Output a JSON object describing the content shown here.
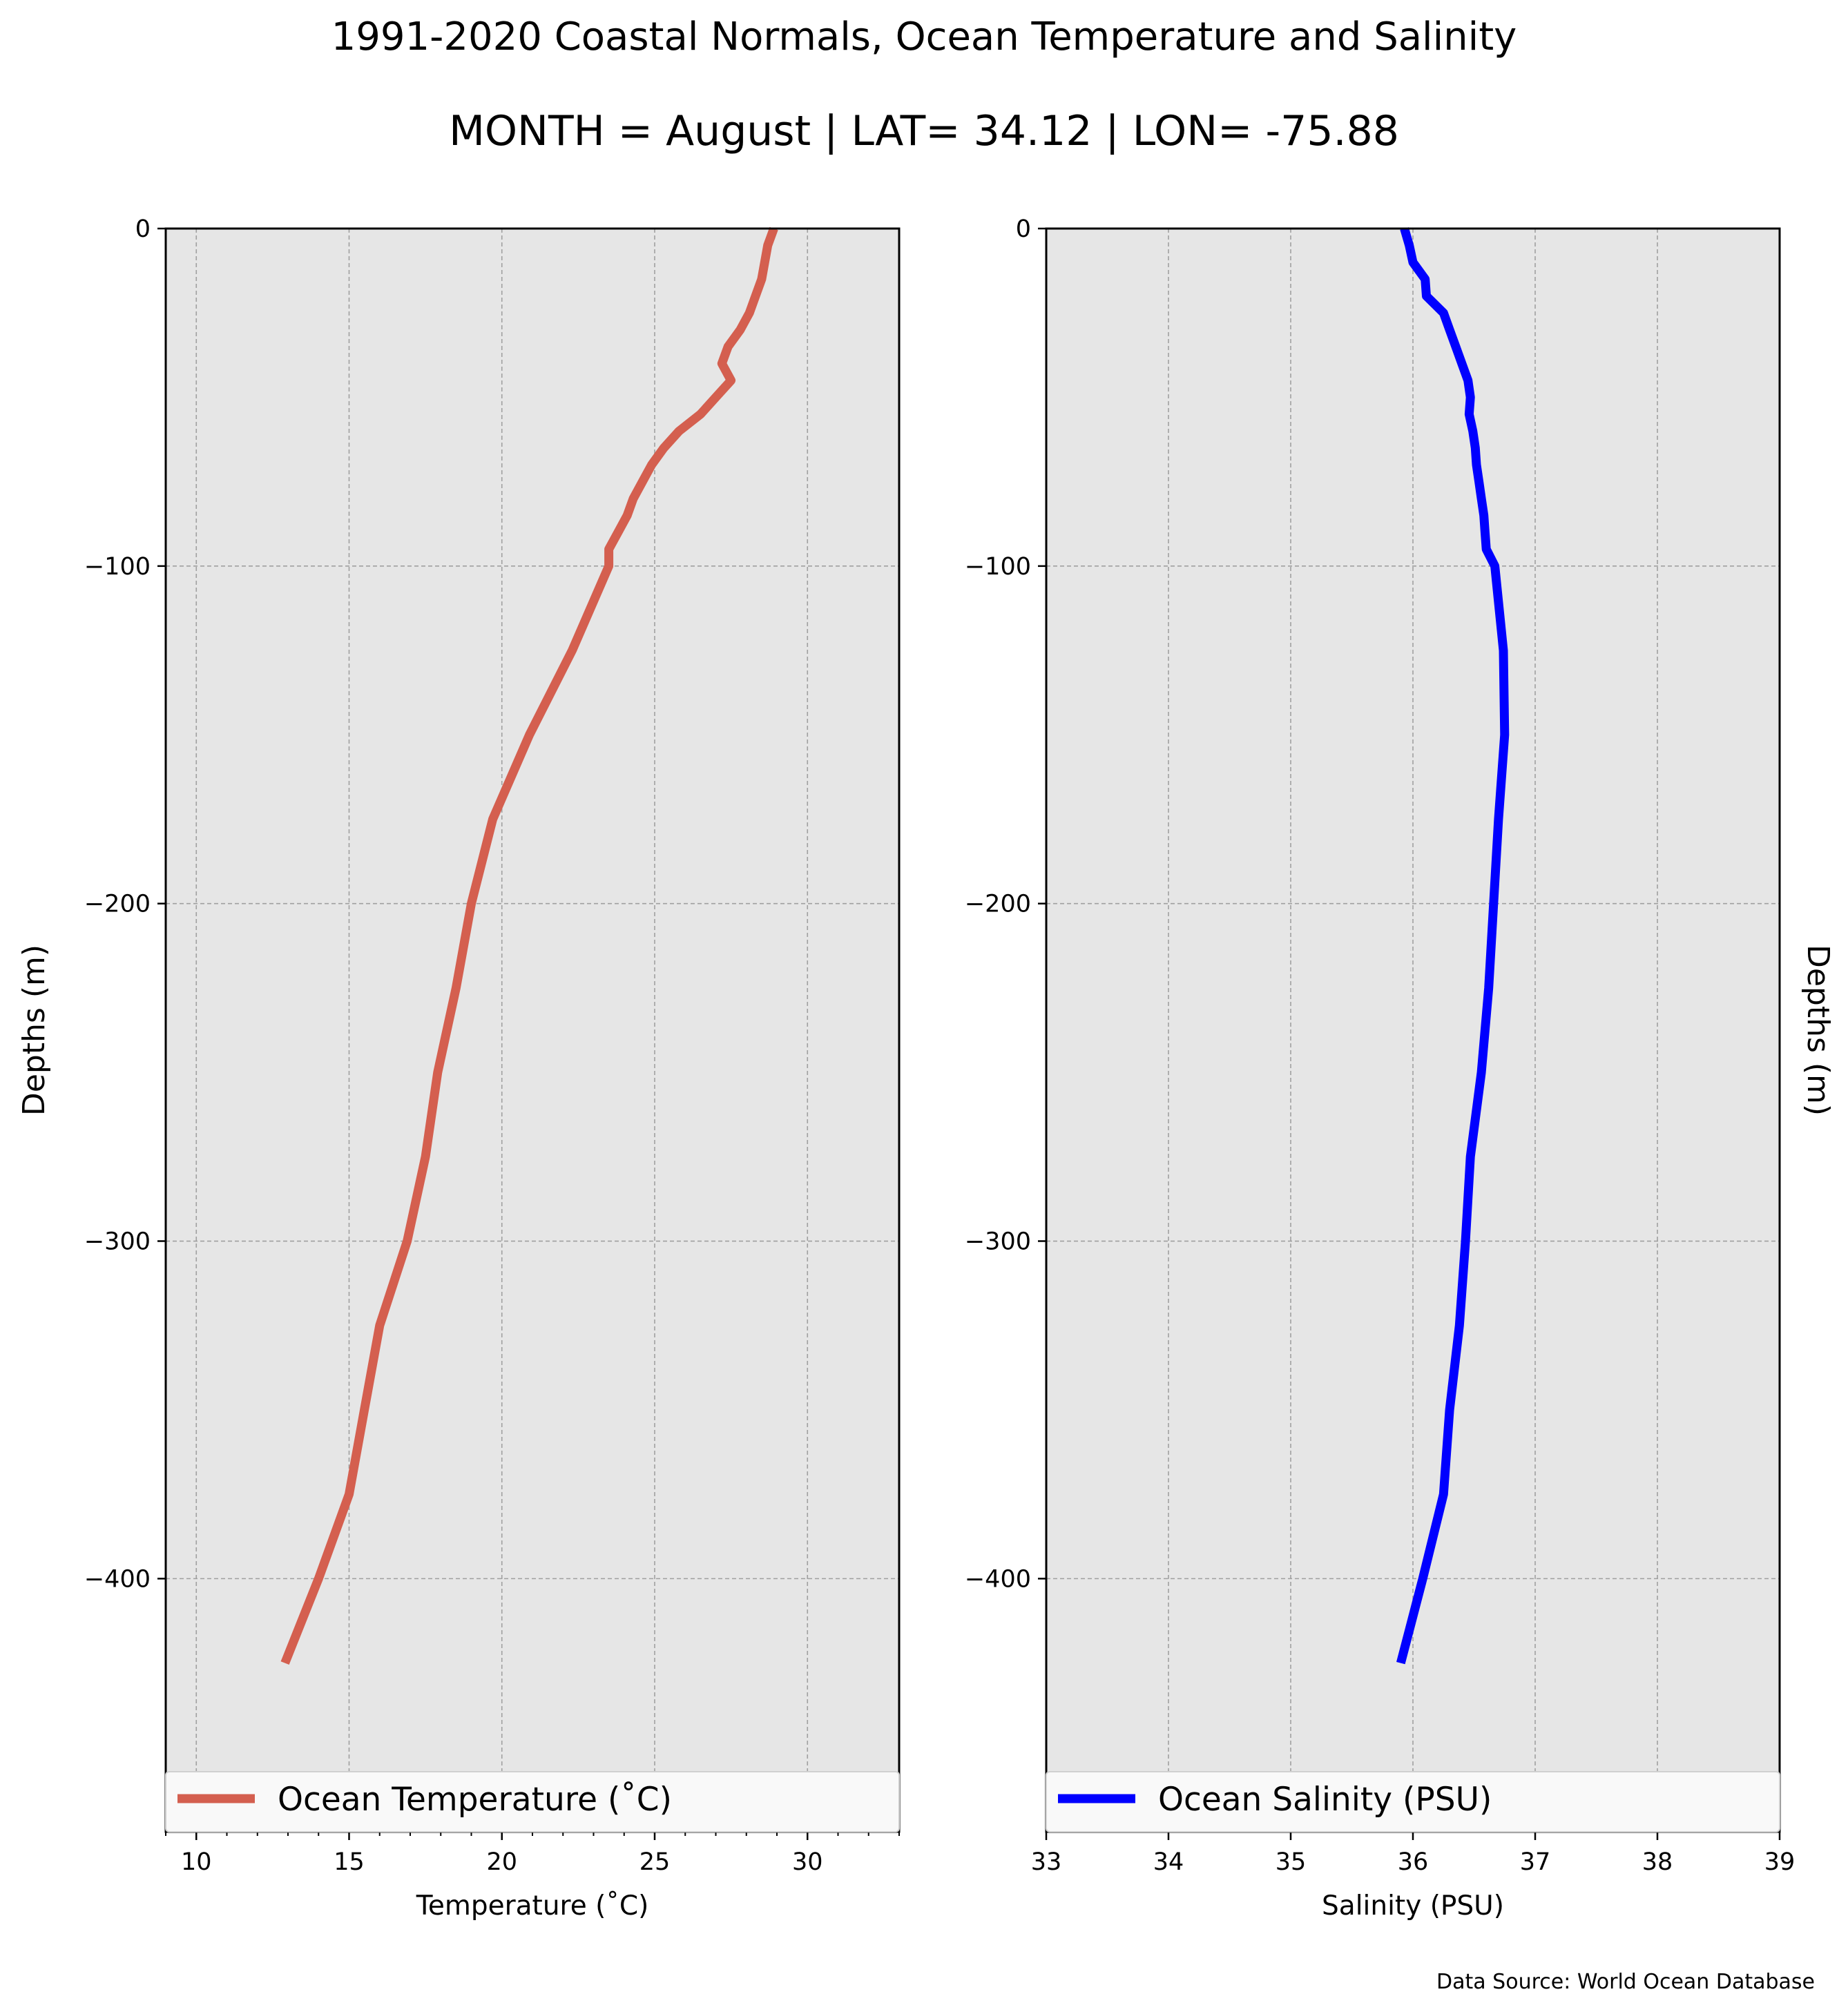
{
  "figure": {
    "title": "1991-2020 Coastal Normals, Ocean Temperature and Salinity",
    "subtitle": "MONTH = August | LAT= 34.12 | LON= -75.88",
    "source": "Data Source: World Ocean Database",
    "background": "#ffffff",
    "plot_background": "#e6e6e6"
  },
  "chart_data": [
    {
      "type": "line",
      "xlabel": "Temperature ($^\\circ$C)",
      "xlabel_display": "Temperature (˚C)",
      "ylabel": "Depths (m)",
      "xlim": [
        9,
        33
      ],
      "ylim": [
        -475,
        0
      ],
      "xticks": [
        10,
        15,
        20,
        25,
        30
      ],
      "xtick_labels": [
        "10",
        "15",
        "20",
        "25",
        "30"
      ],
      "minor_xticks": [
        9,
        11,
        12,
        13,
        14,
        16,
        17,
        18,
        19,
        21,
        22,
        23,
        24,
        26,
        27,
        28,
        29,
        31,
        32,
        33
      ],
      "yticks": [
        0,
        -100,
        -200,
        -300,
        -400
      ],
      "ytick_labels": [
        "0",
        "−100",
        "−200",
        "−300",
        "−400"
      ],
      "grid": true,
      "legend": "lower center",
      "series": [
        {
          "name": "Ocean Temperature (˚C)",
          "color": "#d45f4f",
          "points": [
            [
              28.9,
              0
            ],
            [
              28.7,
              -5
            ],
            [
              28.6,
              -10
            ],
            [
              28.5,
              -15
            ],
            [
              28.3,
              -20
            ],
            [
              28.1,
              -25
            ],
            [
              27.8,
              -30
            ],
            [
              27.4,
              -35
            ],
            [
              27.2,
              -40
            ],
            [
              27.5,
              -45
            ],
            [
              27.0,
              -50
            ],
            [
              26.5,
              -55
            ],
            [
              25.8,
              -60
            ],
            [
              25.3,
              -65
            ],
            [
              24.9,
              -70
            ],
            [
              24.6,
              -75
            ],
            [
              24.3,
              -80
            ],
            [
              24.1,
              -85
            ],
            [
              23.8,
              -90
            ],
            [
              23.5,
              -95
            ],
            [
              23.5,
              -100
            ],
            [
              22.3,
              -125
            ],
            [
              20.9,
              -150
            ],
            [
              19.7,
              -175
            ],
            [
              19.0,
              -200
            ],
            [
              18.5,
              -225
            ],
            [
              17.9,
              -250
            ],
            [
              17.5,
              -275
            ],
            [
              16.9,
              -300
            ],
            [
              16.0,
              -325
            ],
            [
              15.5,
              -350
            ],
            [
              15.0,
              -375
            ],
            [
              14.0,
              -400
            ],
            [
              12.9,
              -425
            ]
          ]
        }
      ]
    },
    {
      "type": "line",
      "xlabel": "Salinity (PSU)",
      "ylabel": "Depths (m)",
      "xlim": [
        33,
        39
      ],
      "ylim": [
        -475,
        0
      ],
      "xticks": [
        33,
        34,
        35,
        36,
        37,
        38,
        39
      ],
      "xtick_labels": [
        "33",
        "34",
        "35",
        "36",
        "37",
        "38",
        "39"
      ],
      "yticks": [
        0,
        -100,
        -200,
        -300,
        -400
      ],
      "ytick_labels": [
        "0",
        "−100",
        "−200",
        "−300",
        "−400"
      ],
      "grid": true,
      "legend": "lower center",
      "series": [
        {
          "name": "Ocean Salinity (PSU)",
          "color": "#0000ff",
          "points": [
            [
              35.93,
              0
            ],
            [
              35.97,
              -5
            ],
            [
              36.0,
              -10
            ],
            [
              36.1,
              -15
            ],
            [
              36.11,
              -20
            ],
            [
              36.25,
              -25
            ],
            [
              36.3,
              -30
            ],
            [
              36.35,
              -35
            ],
            [
              36.4,
              -40
            ],
            [
              36.45,
              -45
            ],
            [
              36.47,
              -50
            ],
            [
              36.46,
              -55
            ],
            [
              36.49,
              -60
            ],
            [
              36.51,
              -65
            ],
            [
              36.52,
              -70
            ],
            [
              36.54,
              -75
            ],
            [
              36.56,
              -80
            ],
            [
              36.58,
              -85
            ],
            [
              36.59,
              -90
            ],
            [
              36.6,
              -95
            ],
            [
              36.67,
              -100
            ],
            [
              36.74,
              -125
            ],
            [
              36.75,
              -150
            ],
            [
              36.7,
              -175
            ],
            [
              36.66,
              -200
            ],
            [
              36.62,
              -225
            ],
            [
              36.56,
              -250
            ],
            [
              36.47,
              -275
            ],
            [
              36.43,
              -300
            ],
            [
              36.38,
              -325
            ],
            [
              36.3,
              -350
            ],
            [
              36.25,
              -375
            ],
            [
              36.08,
              -400
            ],
            [
              35.9,
              -425
            ]
          ]
        }
      ]
    }
  ]
}
